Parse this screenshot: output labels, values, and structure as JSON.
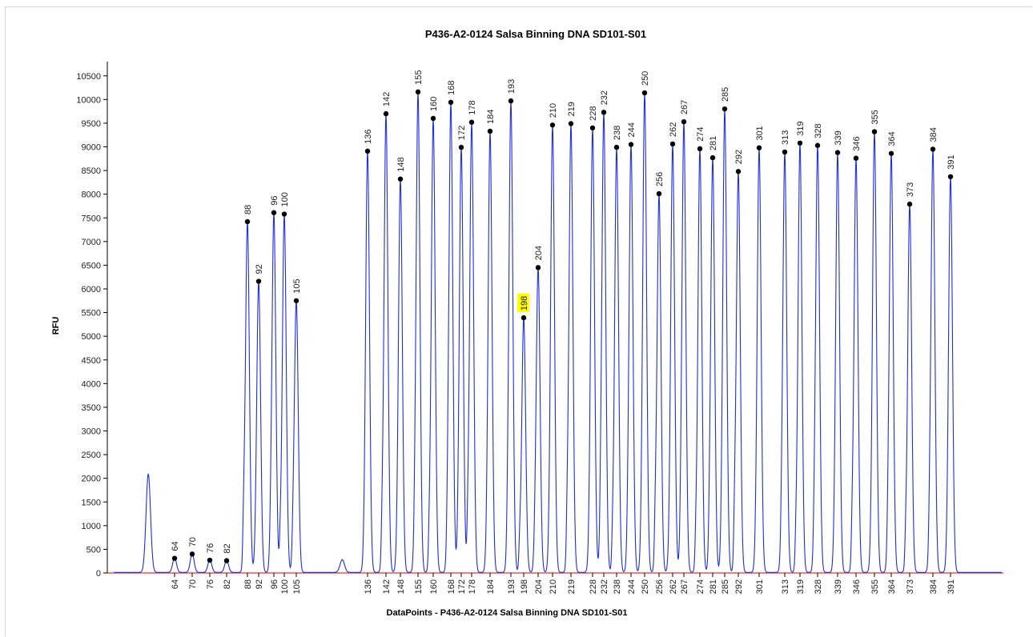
{
  "chart_data": {
    "type": "line",
    "title": "P436-A2-0124 Salsa Binning DNA SD101-S01",
    "xlabel": "DataPoints - P436-A2-0124 Salsa Binning DNA SD101-S01",
    "ylabel": "RFU",
    "ylim": [
      0,
      10800
    ],
    "yticks": [
      0,
      500,
      1000,
      1500,
      2000,
      2500,
      3000,
      3500,
      4000,
      4500,
      5000,
      5500,
      6000,
      6500,
      7000,
      7500,
      8000,
      8500,
      9000,
      9500,
      10000,
      10500
    ],
    "xlim": [
      20,
      418
    ],
    "x_axis_kind": "fragment size (bp)",
    "grid": false,
    "legend": "none",
    "colors": {
      "trace": "#1f2fd8",
      "baseline": "#e0303a",
      "marker": "#000000",
      "highlight": "#ffff00"
    },
    "unlabeled_peaks": [
      {
        "x": 45,
        "y": 2080
      },
      {
        "x": 125,
        "y": 270
      }
    ],
    "series": [
      {
        "name": "",
        "points": [
          {
            "x": 64,
            "y": 310,
            "label": "64"
          },
          {
            "x": 70,
            "y": 400,
            "label": "70"
          },
          {
            "x": 76,
            "y": 270,
            "label": "76"
          },
          {
            "x": 82,
            "y": 260,
            "label": "82"
          },
          {
            "x": 88,
            "y": 7420,
            "label": "88"
          },
          {
            "x": 92,
            "y": 6160,
            "label": "92"
          },
          {
            "x": 96,
            "y": 7610,
            "label": "96"
          },
          {
            "x": 100,
            "y": 7580,
            "label": "100"
          },
          {
            "x": 105,
            "y": 5750,
            "label": "105"
          },
          {
            "x": 136,
            "y": 8910,
            "label": "136"
          },
          {
            "x": 142,
            "y": 9700,
            "label": "142"
          },
          {
            "x": 148,
            "y": 8320,
            "label": "148"
          },
          {
            "x": 155,
            "y": 10160,
            "label": "155"
          },
          {
            "x": 160,
            "y": 9600,
            "label": "160"
          },
          {
            "x": 168,
            "y": 9940,
            "label": "168"
          },
          {
            "x": 172,
            "y": 8990,
            "label": "172"
          },
          {
            "x": 178,
            "y": 9520,
            "label": "178"
          },
          {
            "x": 184,
            "y": 9330,
            "label": "184"
          },
          {
            "x": 193,
            "y": 9970,
            "label": "193"
          },
          {
            "x": 198,
            "y": 5390,
            "label": "198",
            "highlight": true
          },
          {
            "x": 204,
            "y": 6450,
            "label": "204"
          },
          {
            "x": 210,
            "y": 9460,
            "label": "210"
          },
          {
            "x": 219,
            "y": 9490,
            "label": "219"
          },
          {
            "x": 228,
            "y": 9400,
            "label": "228"
          },
          {
            "x": 232,
            "y": 9730,
            "label": "232"
          },
          {
            "x": 238,
            "y": 8990,
            "label": "238"
          },
          {
            "x": 244,
            "y": 9050,
            "label": "244"
          },
          {
            "x": 250,
            "y": 10140,
            "label": "250"
          },
          {
            "x": 256,
            "y": 8010,
            "label": "256"
          },
          {
            "x": 262,
            "y": 9060,
            "label": "262"
          },
          {
            "x": 267,
            "y": 9530,
            "label": "267"
          },
          {
            "x": 274,
            "y": 8960,
            "label": "274"
          },
          {
            "x": 281,
            "y": 8770,
            "label": "281"
          },
          {
            "x": 285,
            "y": 9800,
            "label": "285"
          },
          {
            "x": 292,
            "y": 8480,
            "label": "292"
          },
          {
            "x": 301,
            "y": 8980,
            "label": "301"
          },
          {
            "x": 313,
            "y": 8890,
            "label": "313"
          },
          {
            "x": 319,
            "y": 9080,
            "label": "319"
          },
          {
            "x": 328,
            "y": 9030,
            "label": "328"
          },
          {
            "x": 339,
            "y": 8880,
            "label": "339"
          },
          {
            "x": 346,
            "y": 8760,
            "label": "346"
          },
          {
            "x": 355,
            "y": 9320,
            "label": "355"
          },
          {
            "x": 364,
            "y": 8860,
            "label": "364"
          },
          {
            "x": 373,
            "y": 7790,
            "label": "373"
          },
          {
            "x": 384,
            "y": 8950,
            "label": "384"
          },
          {
            "x": 391,
            "y": 8370,
            "label": "391"
          }
        ]
      }
    ]
  }
}
